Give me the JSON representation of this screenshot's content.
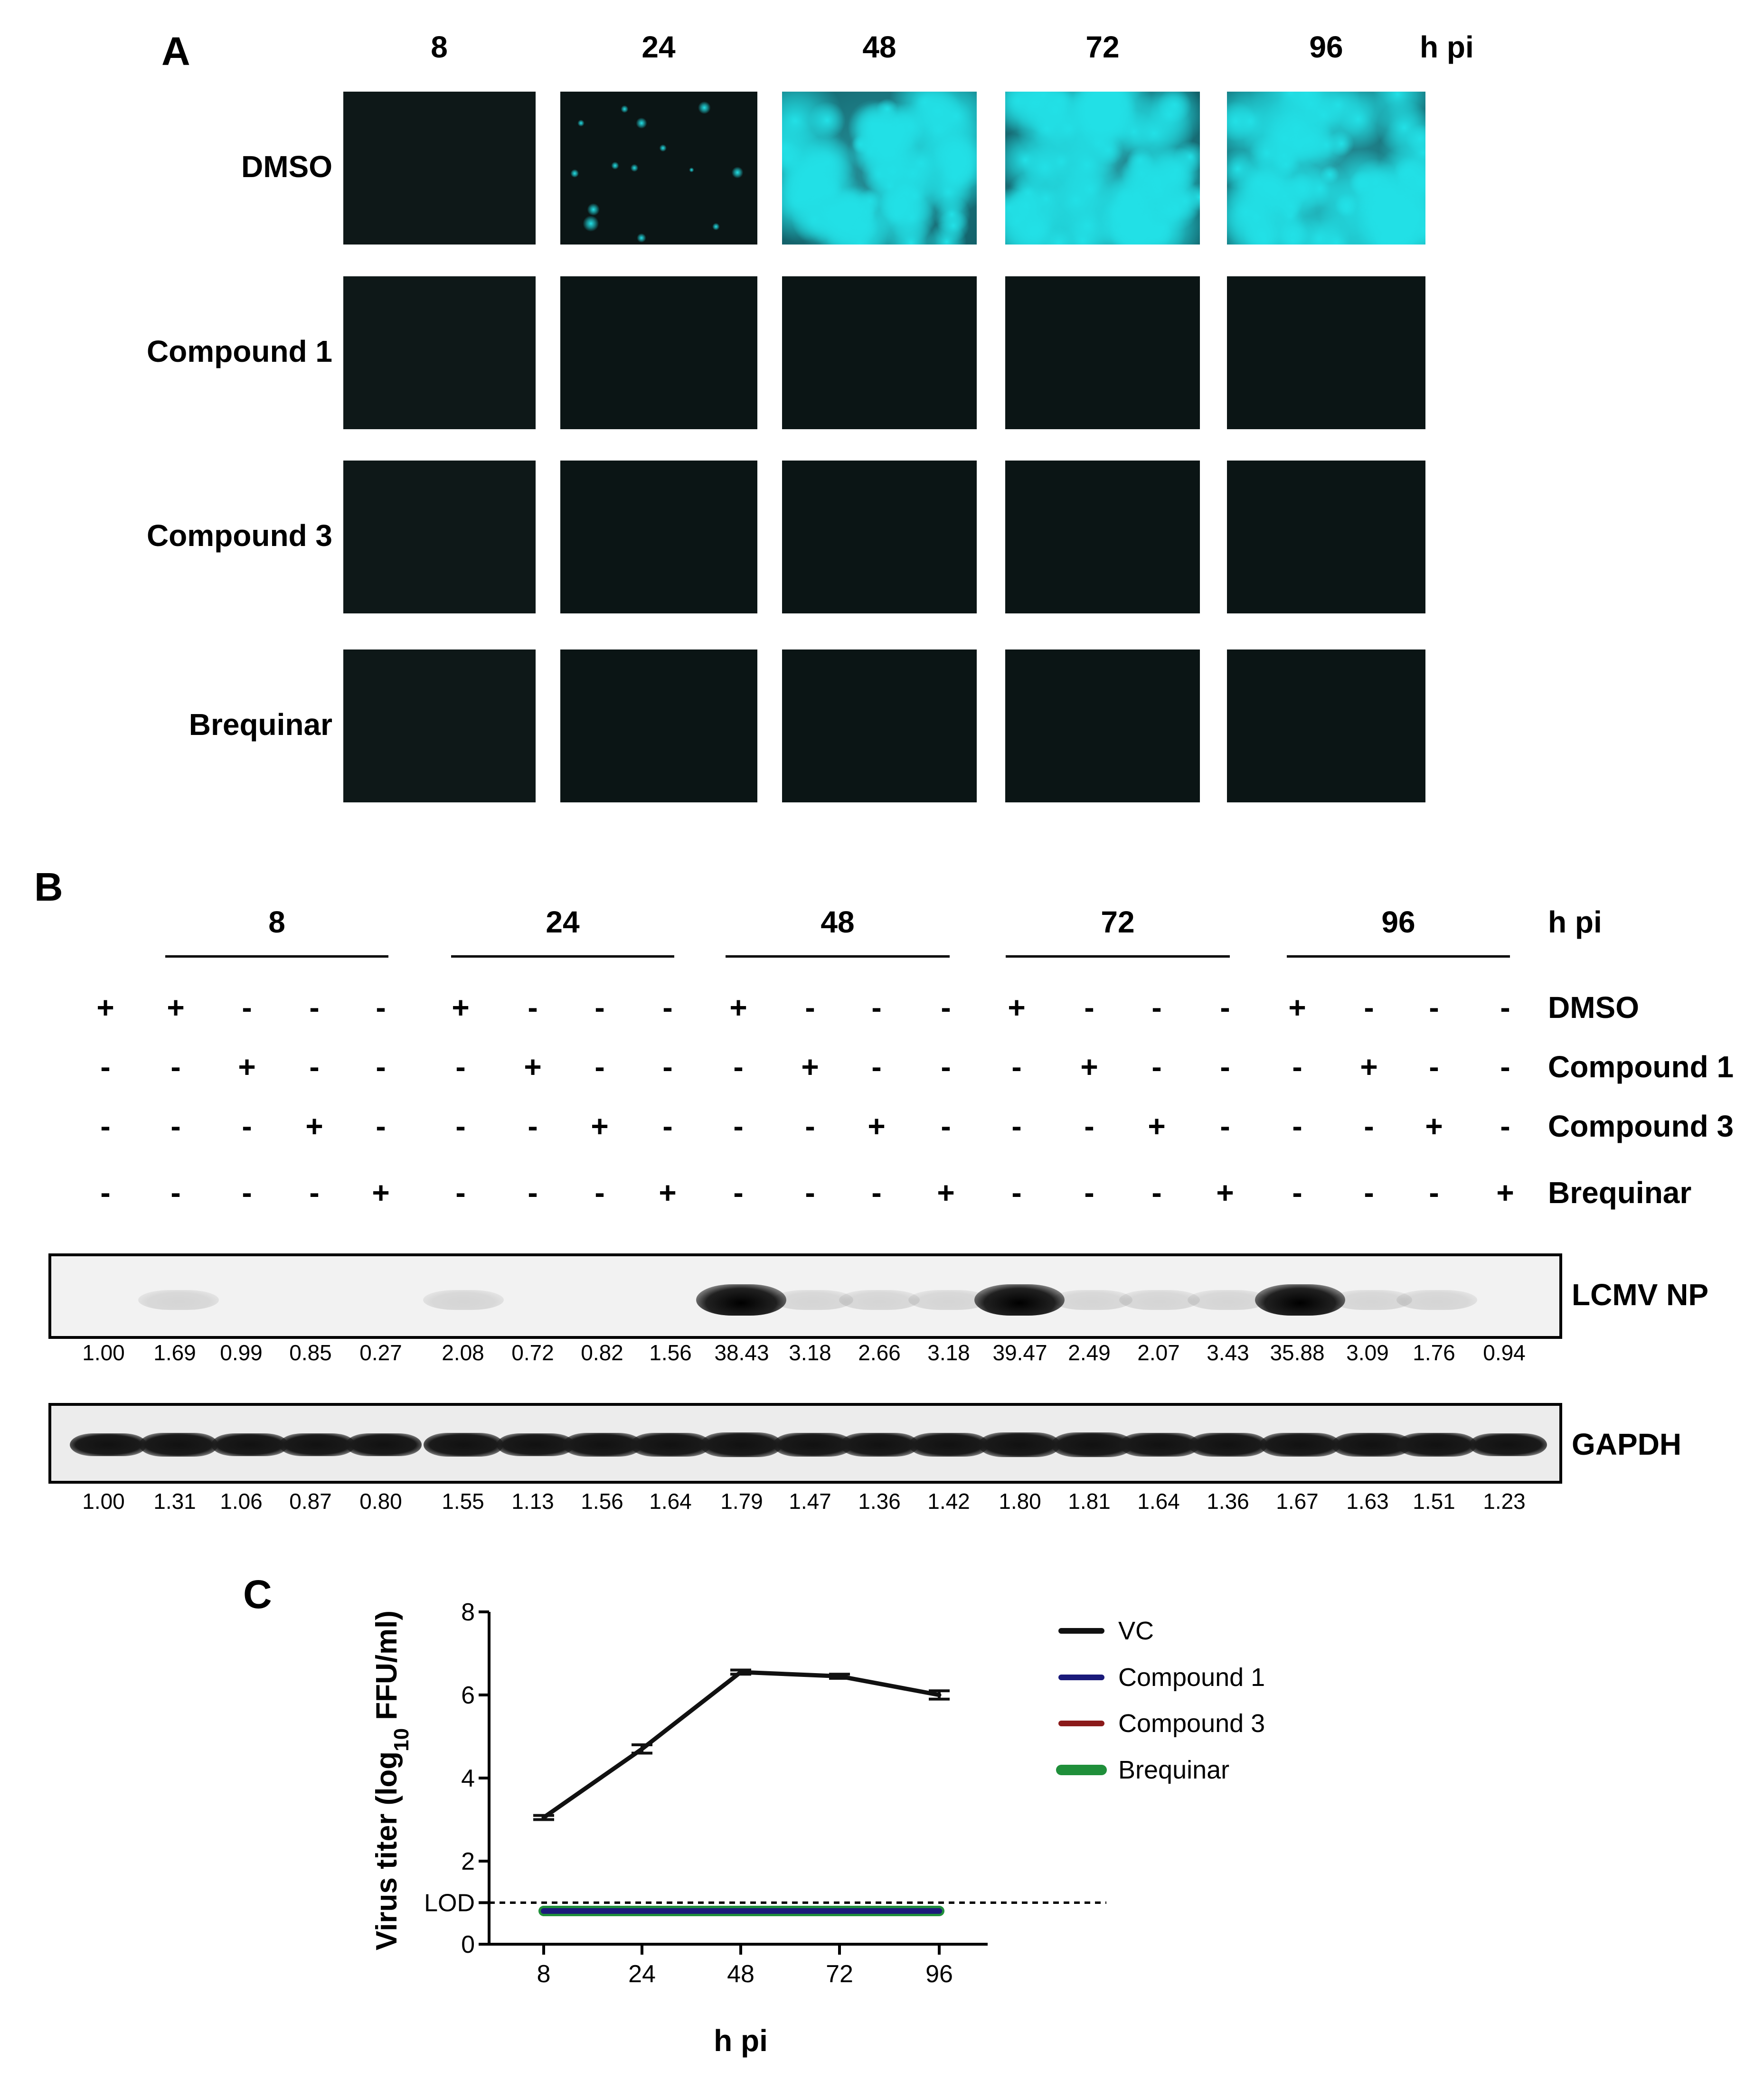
{
  "panel_a": {
    "letter": "A",
    "timepoints": [
      "8",
      "24",
      "48",
      "72",
      "96"
    ],
    "unit": "h pi",
    "rows": [
      {
        "label": "DMSO",
        "intensity": [
          0.02,
          0.12,
          0.85,
          0.85,
          0.88
        ]
      },
      {
        "label": "Compound 1",
        "intensity": [
          0.02,
          0.0,
          0.0,
          0.0,
          0.0
        ]
      },
      {
        "label": "Compound 3",
        "intensity": [
          0.02,
          0.0,
          0.0,
          0.0,
          0.0
        ]
      },
      {
        "label": "Brequinar",
        "intensity": [
          0.02,
          0.0,
          0.0,
          0.0,
          0.0
        ]
      }
    ],
    "fluor_color": "#22e0e6"
  },
  "panel_b": {
    "letter": "B",
    "timepoints": [
      "8",
      "24",
      "48",
      "72",
      "96"
    ],
    "unit": "h pi",
    "treatments": [
      {
        "label": "DMSO",
        "signs": [
          "+",
          "+",
          "-",
          "-",
          "-",
          "+",
          "-",
          "-",
          "-",
          "+",
          "-",
          "-",
          "-",
          "+",
          "-",
          "-",
          "-",
          "+",
          "-",
          "-",
          "-"
        ]
      },
      {
        "label": "Compound 1",
        "signs": [
          "-",
          "-",
          "+",
          "-",
          "-",
          "-",
          "+",
          "-",
          "-",
          "-",
          "+",
          "-",
          "-",
          "-",
          "+",
          "-",
          "-",
          "-",
          "+",
          "-",
          "-"
        ]
      },
      {
        "label": "Compound 3",
        "signs": [
          "-",
          "-",
          "-",
          "+",
          "-",
          "-",
          "-",
          "+",
          "-",
          "-",
          "-",
          "+",
          "-",
          "-",
          "-",
          "+",
          "-",
          "-",
          "-",
          "+",
          "-"
        ]
      },
      {
        "label": "Brequinar",
        "signs": [
          "-",
          "-",
          "-",
          "-",
          "+",
          "-",
          "-",
          "-",
          "+",
          "-",
          "-",
          "-",
          "+",
          "-",
          "-",
          "-",
          "+",
          "-",
          "-",
          "-",
          "+"
        ]
      }
    ],
    "lcmv": {
      "label": "LCMV NP",
      "values": [
        "1.00",
        "1.69",
        "0.99",
        "0.85",
        "0.27",
        "2.08",
        "0.72",
        "0.82",
        "1.56",
        "38.43",
        "3.18",
        "2.66",
        "3.18",
        "39.47",
        "2.49",
        "2.07",
        "3.43",
        "35.88",
        "3.09",
        "1.76",
        "0.94"
      ]
    },
    "gapdh": {
      "label": "GAPDH",
      "values": [
        "1.00",
        "1.31",
        "1.06",
        "0.87",
        "0.80",
        "1.55",
        "1.13",
        "1.56",
        "1.64",
        "1.79",
        "1.47",
        "1.36",
        "1.42",
        "1.80",
        "1.81",
        "1.64",
        "1.36",
        "1.67",
        "1.63",
        "1.51",
        "1.23"
      ]
    }
  },
  "panel_c": {
    "letter": "C",
    "chart_data": {
      "type": "line",
      "x": [
        8,
        24,
        48,
        72,
        96
      ],
      "xlabel": "h pi",
      "ylabel_prefix": "Virus titer (log",
      "ylabel_sub": "10",
      "ylabel_suffix": " FFU/ml)",
      "ylim": [
        0,
        8
      ],
      "yticks": [
        "0",
        "2",
        "4",
        "6",
        "8"
      ],
      "lod_label": "LOD",
      "lod_value": 1.0,
      "series": [
        {
          "name": "VC",
          "color": "#111111",
          "values": [
            3.05,
            4.7,
            6.55,
            6.45,
            6.0
          ],
          "err": [
            0.05,
            0.1,
            0.05,
            0.05,
            0.1
          ]
        },
        {
          "name": "Compound 1",
          "color": "#1a1a7a",
          "values": [
            0.8,
            0.8,
            0.8,
            0.8,
            0.8
          ]
        },
        {
          "name": "Compound 3",
          "color": "#8b1a1a",
          "values": [
            0.8,
            0.8,
            0.8,
            0.8,
            0.8
          ]
        },
        {
          "name": "Brequinar",
          "color": "#1f8f3a",
          "values": [
            0.8,
            0.8,
            0.8,
            0.8,
            0.8
          ]
        }
      ],
      "grid": false,
      "legend": "right"
    }
  }
}
